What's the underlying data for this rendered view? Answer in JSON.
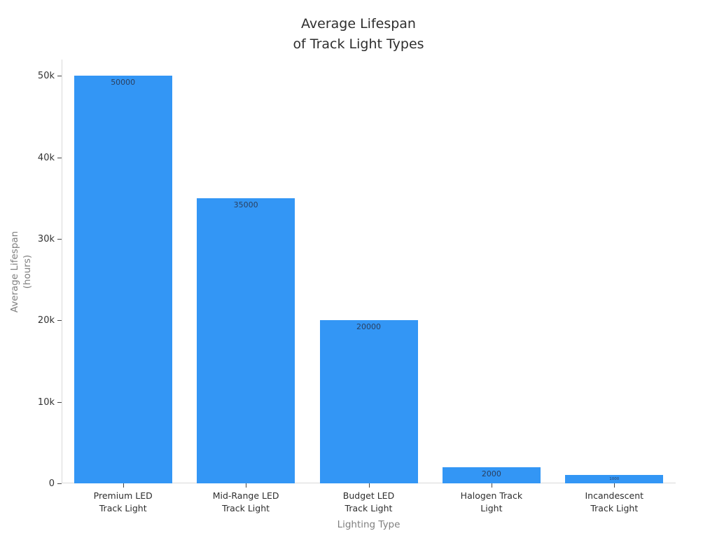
{
  "figure": {
    "title_lines": [
      "Average Lifespan",
      "of Track Light Types"
    ],
    "colors": {
      "bar": "#3396F5",
      "title": "#2e2e2e",
      "tick_label": "#333333",
      "axis_title": "#7f7f7f",
      "bar_value_label": "#2a3f5f",
      "axis_line": "#d9d9d9",
      "background": "#ffffff"
    }
  },
  "chart_data": {
    "type": "bar",
    "title": "Average Lifespan of Track Light Types",
    "xlabel": "Lighting Type",
    "ylabel": "Average Lifespan (hours)",
    "ylabel_lines": [
      "Average Lifespan",
      "(hours)"
    ],
    "categories": [
      "Premium LED Track Light",
      "Mid-Range LED Track Light",
      "Budget LED Track Light",
      "Halogen Track Light",
      "Incandescent Track Light"
    ],
    "category_label_lines": [
      [
        "Premium LED",
        "Track Light"
      ],
      [
        "Mid-Range LED",
        "Track Light"
      ],
      [
        "Budget LED",
        "Track Light"
      ],
      [
        "Halogen Track",
        "Light"
      ],
      [
        "Incandescent",
        "Track Light"
      ]
    ],
    "values": [
      50000,
      35000,
      20000,
      2000,
      1000
    ],
    "bar_labels": [
      "50000",
      "35000",
      "20000",
      "2000",
      "1000"
    ],
    "ylim": [
      0,
      52000
    ],
    "yticks": [
      0,
      10000,
      20000,
      30000,
      40000,
      50000
    ],
    "ytick_labels": [
      "0",
      "10k",
      "20k",
      "30k",
      "40k",
      "50k"
    ],
    "grid": false,
    "legend": false,
    "bar_label_position": "inside-top"
  }
}
